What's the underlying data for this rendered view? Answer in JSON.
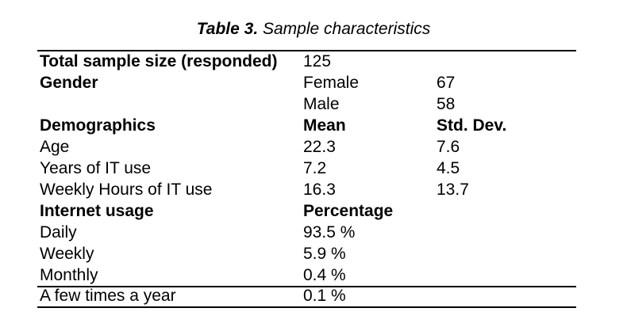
{
  "caption": {
    "label": "Table 3.",
    "title": "Sample characteristics"
  },
  "table": {
    "rows": [
      {
        "c1": "Total sample size (responded)",
        "c2": "125",
        "c3": ""
      },
      {
        "c1": "Gender",
        "c2": "Female",
        "c3": "67"
      },
      {
        "c1": "",
        "c2": "Male",
        "c3": "58"
      },
      {
        "c1": "Demographics",
        "c2": "Mean",
        "c3": "Std. Dev."
      },
      {
        "c1": "Age",
        "c2": "22.3",
        "c3": "7.6"
      },
      {
        "c1": "Years of IT use",
        "c2": "7.2",
        "c3": "4.5"
      },
      {
        "c1": "Weekly Hours of IT use",
        "c2": "16.3",
        "c3": "13.7"
      },
      {
        "c1": "Internet usage",
        "c2": "Percentage",
        "c3": ""
      },
      {
        "c1": "Daily",
        "c2": "93.5 %",
        "c3": ""
      },
      {
        "c1": "Weekly",
        "c2": "5.9 %",
        "c3": ""
      },
      {
        "c1": "Monthly",
        "c2": "0.4 %",
        "c3": ""
      },
      {
        "c1": "A few times a year",
        "c2": "0.1 %",
        "c3": ""
      }
    ]
  }
}
